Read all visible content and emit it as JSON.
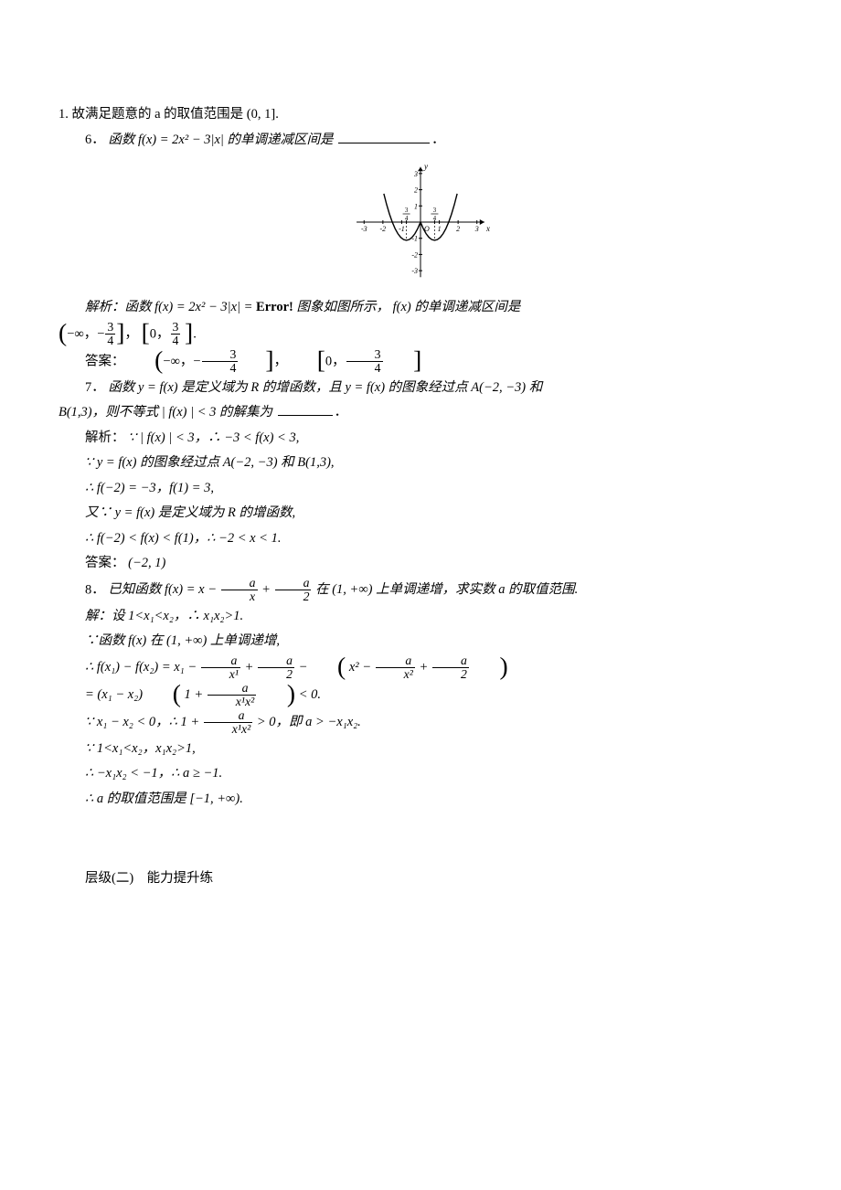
{
  "page": {
    "p1": "1. 故满足题意的 a 的取值范围是 (0, 1].",
    "q6": {
      "num": "6．",
      "text": "函数 f(x) = 2x² − 3|x| 的单调递减区间是",
      "blank_width": 100
    },
    "chart": {
      "type": "function-plot",
      "width": 160,
      "height": 140,
      "x_range": [
        -3.5,
        3.5
      ],
      "y_range": [
        -3.5,
        3.5
      ],
      "x_ticks": [
        -3,
        -2,
        -1,
        1,
        2,
        3
      ],
      "y_ticks": [
        -3,
        -2,
        -1,
        1,
        2,
        3
      ],
      "x_frac_labels": [
        {
          "x": -0.75,
          "num": "3",
          "den": "4"
        },
        {
          "x": 0.75,
          "num": "3",
          "den": "4"
        }
      ],
      "origin_label": "O",
      "axis_labels": {
        "x": "x",
        "y": "y"
      },
      "curve_color": "#000000",
      "axis_color": "#000000",
      "background": "#ffffff",
      "curve_samples": [
        [
          -1.95,
          1.755
        ],
        [
          -1.8,
          1.08
        ],
        [
          -1.65,
          0.495
        ],
        [
          -1.5,
          0.0
        ],
        [
          -1.35,
          -0.405
        ],
        [
          -1.2,
          -0.72
        ],
        [
          -1.05,
          -0.945
        ],
        [
          -0.9,
          -1.08
        ],
        [
          -0.75,
          -1.125
        ],
        [
          -0.6,
          -1.08
        ],
        [
          -0.45,
          -0.945
        ],
        [
          -0.3,
          -0.72
        ],
        [
          -0.15,
          -0.405
        ],
        [
          0.0,
          0.0
        ],
        [
          0.15,
          -0.405
        ],
        [
          0.3,
          -0.72
        ],
        [
          0.45,
          -0.945
        ],
        [
          0.6,
          -1.08
        ],
        [
          0.75,
          -1.125
        ],
        [
          0.9,
          -1.08
        ],
        [
          1.05,
          -0.945
        ],
        [
          1.2,
          -0.72
        ],
        [
          1.35,
          -0.405
        ],
        [
          1.5,
          0.0
        ],
        [
          1.65,
          0.495
        ],
        [
          1.8,
          1.08
        ],
        [
          1.95,
          1.755
        ]
      ]
    },
    "q6_sol": {
      "lead": "解析：函数 f(x) = 2x² − 3|x| =",
      "error_label": "Error!",
      "tail": " 图象如图所示， f(x) 的单调递减区间是",
      "intervals_line1": true,
      "answer_label": "答案：",
      "frac34_num": "3",
      "frac34_den": "4"
    },
    "q7": {
      "num": "7．",
      "l1a": "函数 y = f(x) 是定义域为 R 的增函数，且 y = f(x) 的图象经过点 A(−2, −3) 和",
      "l1b": "B(1,3)，则不等式 | f(x) | < 3 的解集为",
      "blank_width": 60,
      "sol_label": "解析：",
      "s1": "∵ | f(x) | < 3，∴ −3 < f(x) < 3,",
      "s2": "∵ y = f(x) 的图象经过点 A(−2, −3) 和 B(1,3),",
      "s3": "∴ f(−2) = −3，f(1) = 3,",
      "s4": "又∵ y = f(x) 是定义域为 R 的增函数,",
      "s5": "∴ f(−2) < f(x) < f(1)，∴ −2 < x < 1.",
      "ans_label": "答案：",
      "ans": "(−2, 1)"
    },
    "q8": {
      "num": "8．",
      "stem_a": "已知函数 f(x) = x −",
      "stem_b": "+",
      "stem_c": "在 (1, +∞) 上单调递增，求实数 a 的取值范围.",
      "frac_ax_num": "a",
      "frac_ax_den": "x",
      "frac_a2_num": "a",
      "frac_a2_den": "2",
      "l1": "解：设 1<x₁<x₂，∴ x₁x₂>1.",
      "l2": "∵函数 f(x) 在 (1, +∞) 上单调递增,",
      "l3a": "∴ f(x₁) − f(x₂) = x₁ −",
      "l3b": "+",
      "l3c": "−",
      "l3d": "x² −",
      "l3e": "+",
      "frac_ax1_num": "a",
      "frac_ax1_den": "x¹",
      "frac_ax2_num": "a",
      "frac_ax2_den": "x²",
      "l4a": "= (x₁ − x₂)",
      "l4b": "1 +",
      "frac_ax1x2_num": "a",
      "frac_ax1x2_den": "x¹x²",
      "l4c": "< 0.",
      "l5a": "∵ x₁ − x₂ < 0，∴ 1 +",
      "l5b": "> 0，即 a > −x₁x₂.",
      "l6": "∵ 1<x₁<x₂，x₁x₂>1,",
      "l7": "∴ −x₁x₂ < −1，∴ a ≥ −1.",
      "l8": "∴ a 的取值范围是 [−1, +∞)."
    },
    "section2": "层级(二)　能力提升练"
  }
}
